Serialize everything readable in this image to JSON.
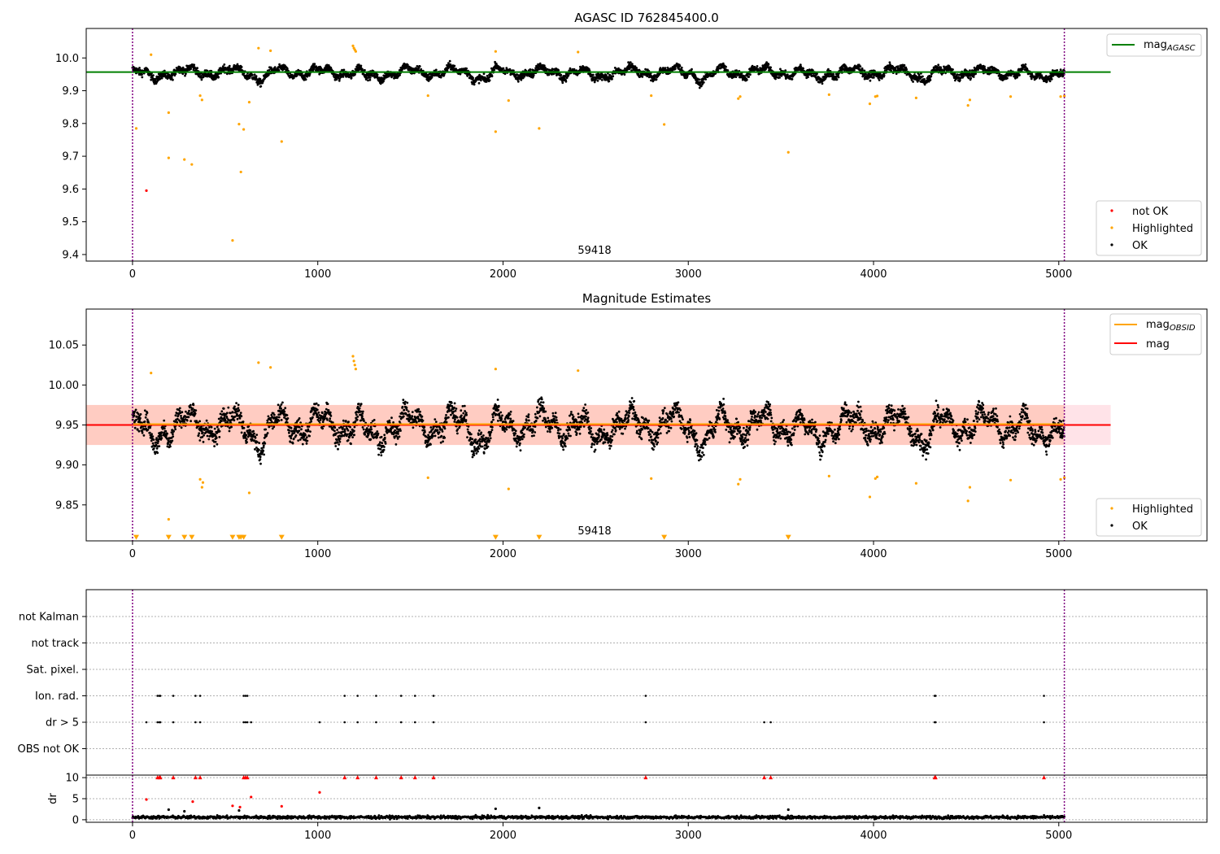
{
  "figure": {
    "colors": {
      "ok": "#000000",
      "highlighted": "#ffa500",
      "not_ok": "#ff0000",
      "mag_agasc": "#008000",
      "mag_obsid": "#ffa500",
      "mag": "#ff0000",
      "vline": "#800080",
      "band_pink": "#ffc0cb",
      "band_orange": "#ffa07a"
    }
  },
  "chart_data": [
    {
      "type": "scatter",
      "title": "AGASC ID 762845400.0",
      "annotation": "59418",
      "xlim": [
        -250,
        5800
      ],
      "ylim": [
        9.38,
        10.09
      ],
      "x_ticks": [
        0,
        1000,
        2000,
        3000,
        4000,
        5000
      ],
      "y_ticks": [
        9.4,
        9.5,
        9.6,
        9.7,
        9.8,
        9.9,
        10.0
      ],
      "y_tick_labels": [
        "9.4",
        "9.5",
        "9.6",
        "9.7",
        "9.8",
        "9.9",
        "10.0"
      ],
      "vlines": [
        0,
        5030
      ],
      "hline": {
        "y": 9.957,
        "x": [
          -250,
          5280
        ],
        "name": "mag_AGASC"
      },
      "legend_lines": [
        {
          "name": "mag",
          "sub": "AGASC",
          "color": "#008000"
        }
      ],
      "legend_points": [
        {
          "name": "not OK",
          "color": "#ff0000"
        },
        {
          "name": "Highlighted",
          "color": "#ffa500"
        },
        {
          "name": "OK",
          "color": "#000000"
        }
      ],
      "series": [
        {
          "name": "OK",
          "pattern": "ok_band",
          "range": [
            0,
            5030
          ],
          "baseline": 9.957,
          "spread": 0.02
        },
        {
          "name": "Highlighted",
          "points": [
            [
              20,
              9.785
            ],
            [
              100,
              10.01
            ],
            [
              195,
              9.833
            ],
            [
              195,
              9.695
            ],
            [
              280,
              9.69
            ],
            [
              320,
              9.675
            ],
            [
              365,
              9.885
            ],
            [
              375,
              9.872
            ],
            [
              540,
              9.443
            ],
            [
              575,
              9.798
            ],
            [
              585,
              9.652
            ],
            [
              600,
              9.782
            ],
            [
              630,
              9.865
            ],
            [
              680,
              10.03
            ],
            [
              745,
              10.022
            ],
            [
              805,
              9.745
            ],
            [
              1190,
              10.037
            ],
            [
              1195,
              10.03
            ],
            [
              1200,
              10.025
            ],
            [
              1205,
              10.02
            ],
            [
              1595,
              9.885
            ],
            [
              1960,
              10.02
            ],
            [
              1960,
              9.775
            ],
            [
              2030,
              9.87
            ],
            [
              2195,
              9.785
            ],
            [
              2405,
              10.018
            ],
            [
              2800,
              9.885
            ],
            [
              2870,
              9.797
            ],
            [
              3270,
              9.876
            ],
            [
              3280,
              9.882
            ],
            [
              3540,
              9.712
            ],
            [
              3760,
              9.888
            ],
            [
              3980,
              9.86
            ],
            [
              4010,
              9.882
            ],
            [
              4020,
              9.884
            ],
            [
              4230,
              9.878
            ],
            [
              4510,
              9.855
            ],
            [
              4520,
              9.872
            ],
            [
              4740,
              9.882
            ],
            [
              5010,
              9.882
            ],
            [
              5030,
              9.884
            ]
          ]
        },
        {
          "name": "not OK",
          "points": [
            [
              75,
              9.595
            ]
          ]
        }
      ]
    },
    {
      "type": "scatter",
      "title": "Magnitude Estimates",
      "annotation": "59418",
      "xlim": [
        -250,
        5800
      ],
      "ylim": [
        9.805,
        10.095
      ],
      "x_ticks": [
        0,
        1000,
        2000,
        3000,
        4000,
        5000
      ],
      "y_ticks": [
        9.85,
        9.9,
        9.95,
        10.0,
        10.05
      ],
      "y_tick_labels": [
        "9.85",
        "9.90",
        "9.95",
        "10.00",
        "10.05"
      ],
      "vlines": [
        0,
        5030
      ],
      "mag_obsid": 9.951,
      "mag": 9.95,
      "band_obsid": [
        9.925,
        9.975
      ],
      "band_mag": [
        9.925,
        9.975
      ],
      "legend_lines": [
        {
          "name": "mag",
          "sub": "OBSID",
          "color": "#ffa500"
        },
        {
          "name": "mag",
          "sub": "",
          "color": "#ff0000"
        }
      ],
      "legend_points": [
        {
          "name": "Highlighted",
          "color": "#ffa500"
        },
        {
          "name": "OK",
          "color": "#000000"
        }
      ],
      "series": [
        {
          "name": "OK",
          "pattern": "ok_band",
          "range": [
            0,
            5030
          ],
          "baseline": 9.951,
          "spread": 0.022
        },
        {
          "name": "Highlighted",
          "points": [
            [
              100,
              10.015
            ],
            [
              195,
              9.832
            ],
            [
              365,
              9.882
            ],
            [
              375,
              9.872
            ],
            [
              380,
              9.878
            ],
            [
              630,
              9.865
            ],
            [
              680,
              10.028
            ],
            [
              745,
              10.022
            ],
            [
              1190,
              10.036
            ],
            [
              1195,
              10.03
            ],
            [
              1200,
              10.025
            ],
            [
              1205,
              10.02
            ],
            [
              1595,
              9.884
            ],
            [
              1960,
              10.02
            ],
            [
              2030,
              9.87
            ],
            [
              2405,
              10.018
            ],
            [
              2800,
              9.883
            ],
            [
              3270,
              9.876
            ],
            [
              3280,
              9.882
            ],
            [
              3760,
              9.886
            ],
            [
              3980,
              9.86
            ],
            [
              4010,
              9.883
            ],
            [
              4020,
              9.885
            ],
            [
              4230,
              9.877
            ],
            [
              4510,
              9.855
            ],
            [
              4520,
              9.872
            ],
            [
              4740,
              9.881
            ],
            [
              5010,
              9.882
            ],
            [
              5030,
              9.884
            ]
          ]
        },
        {
          "name": "Highlighted (below range)",
          "marker": "triangle-down",
          "points": [
            [
              20,
              9.81
            ],
            [
              195,
              9.81
            ],
            [
              280,
              9.81
            ],
            [
              320,
              9.81
            ],
            [
              540,
              9.81
            ],
            [
              575,
              9.81
            ],
            [
              585,
              9.81
            ],
            [
              600,
              9.81
            ],
            [
              805,
              9.81
            ],
            [
              1960,
              9.81
            ],
            [
              2195,
              9.81
            ],
            [
              2870,
              9.81
            ],
            [
              3540,
              9.81
            ]
          ]
        }
      ]
    },
    {
      "type": "scatter",
      "title": "",
      "xlim": [
        -250,
        5800
      ],
      "x_ticks": [
        0,
        1000,
        2000,
        3000,
        4000,
        5000
      ],
      "vlines": [
        0,
        5030
      ],
      "flag_categories": [
        "not Kalman",
        "not track",
        "Sat. pixel.",
        "Ion. rad.",
        "dr > 5",
        "OBS not OK"
      ],
      "flags": {
        "Ion. rad.": [
          135,
          145,
          150,
          220,
          340,
          365,
          600,
          610,
          620,
          1145,
          1215,
          1315,
          1450,
          1525,
          1625,
          2770,
          4330,
          4335,
          4920
        ],
        "dr > 5": [
          75,
          135,
          145,
          150,
          220,
          340,
          365,
          600,
          610,
          620,
          640,
          1010,
          1145,
          1215,
          1315,
          1450,
          1525,
          1625,
          2770,
          3410,
          3445,
          4330,
          4335,
          4920
        ]
      }
    },
    {
      "type": "scatter",
      "title": "",
      "ylabel": "dr",
      "xlim": [
        -250,
        5800
      ],
      "ylim": [
        -0.6,
        10.6
      ],
      "x_ticks": [
        0,
        1000,
        2000,
        3000,
        4000,
        5000
      ],
      "y_ticks": [
        0,
        5,
        10
      ],
      "y_tick_labels": [
        "0",
        "5",
        "10"
      ],
      "vlines": [
        0,
        5030
      ],
      "series": [
        {
          "name": "dr OK",
          "pattern": "dr_band",
          "range": [
            0,
            5030
          ],
          "baseline": 0.6,
          "spread": 0.35
        },
        {
          "name": "dr high",
          "color": "#ff0000",
          "marker": "triangle-up",
          "points": [
            [
              135,
              10
            ],
            [
              145,
              10
            ],
            [
              150,
              10
            ],
            [
              220,
              10
            ],
            [
              340,
              10
            ],
            [
              365,
              10
            ],
            [
              600,
              10
            ],
            [
              610,
              10
            ],
            [
              620,
              10
            ],
            [
              1145,
              10
            ],
            [
              1215,
              10
            ],
            [
              1315,
              10
            ],
            [
              1450,
              10
            ],
            [
              1525,
              10
            ],
            [
              1625,
              10
            ],
            [
              2770,
              10
            ],
            [
              3410,
              10
            ],
            [
              3445,
              10
            ],
            [
              4330,
              10
            ],
            [
              4335,
              10
            ],
            [
              4920,
              10
            ]
          ]
        },
        {
          "name": "dr moderate",
          "color": "#ff0000",
          "points": [
            [
              75,
              4.8
            ],
            [
              325,
              4.3
            ],
            [
              540,
              3.3
            ],
            [
              580,
              3.0
            ],
            [
              640,
              5.4
            ],
            [
              805,
              3.2
            ],
            [
              1010,
              6.5
            ]
          ]
        },
        {
          "name": "dr misc",
          "color": "#000000",
          "points": [
            [
              195,
              2.4
            ],
            [
              280,
              2.0
            ],
            [
              575,
              2.2
            ],
            [
              1960,
              2.6
            ],
            [
              2195,
              2.8
            ],
            [
              3540,
              2.4
            ]
          ]
        }
      ]
    }
  ]
}
